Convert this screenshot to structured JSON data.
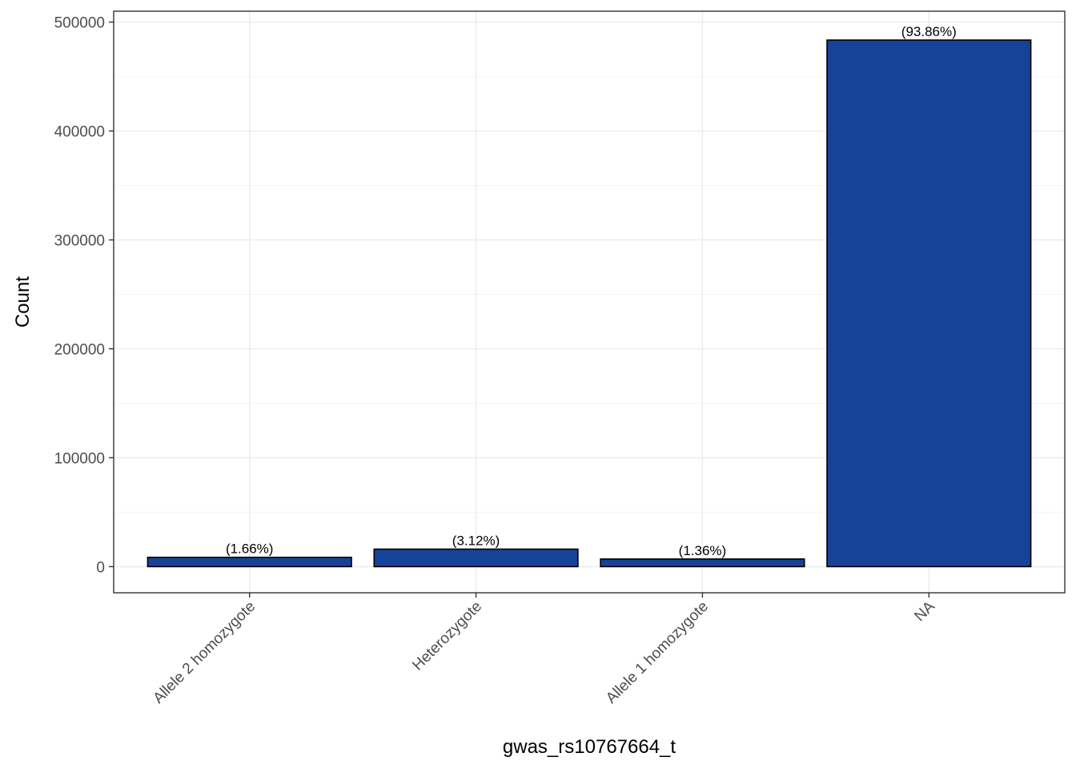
{
  "chart_data": {
    "type": "bar",
    "categories": [
      "Allele 2 homozygote",
      "Heterozygote",
      "Allele 1 homozygote",
      "NA"
    ],
    "values": [
      8550,
      16080,
      7000,
      483500
    ],
    "data_labels": [
      "(1.66%)",
      "(3.12%)",
      "(1.36%)",
      "(93.86%)"
    ],
    "xlabel": "gwas_rs10767664_t",
    "ylabel": "Count",
    "ylim": [
      -24000,
      510000
    ],
    "yticks": [
      0,
      100000,
      200000,
      300000,
      400000,
      500000
    ],
    "ytick_labels": [
      "0",
      "100000",
      "200000",
      "300000",
      "400000",
      "500000"
    ],
    "grid": true,
    "legend": "none",
    "colors": {
      "bar_fill": "#174299",
      "bar_stroke": "#000000",
      "grid_major": "#ebebeb",
      "grid_minor": "#f4f4f4",
      "panel_border": "#333333",
      "tick_text": "#4d4d4d"
    }
  }
}
